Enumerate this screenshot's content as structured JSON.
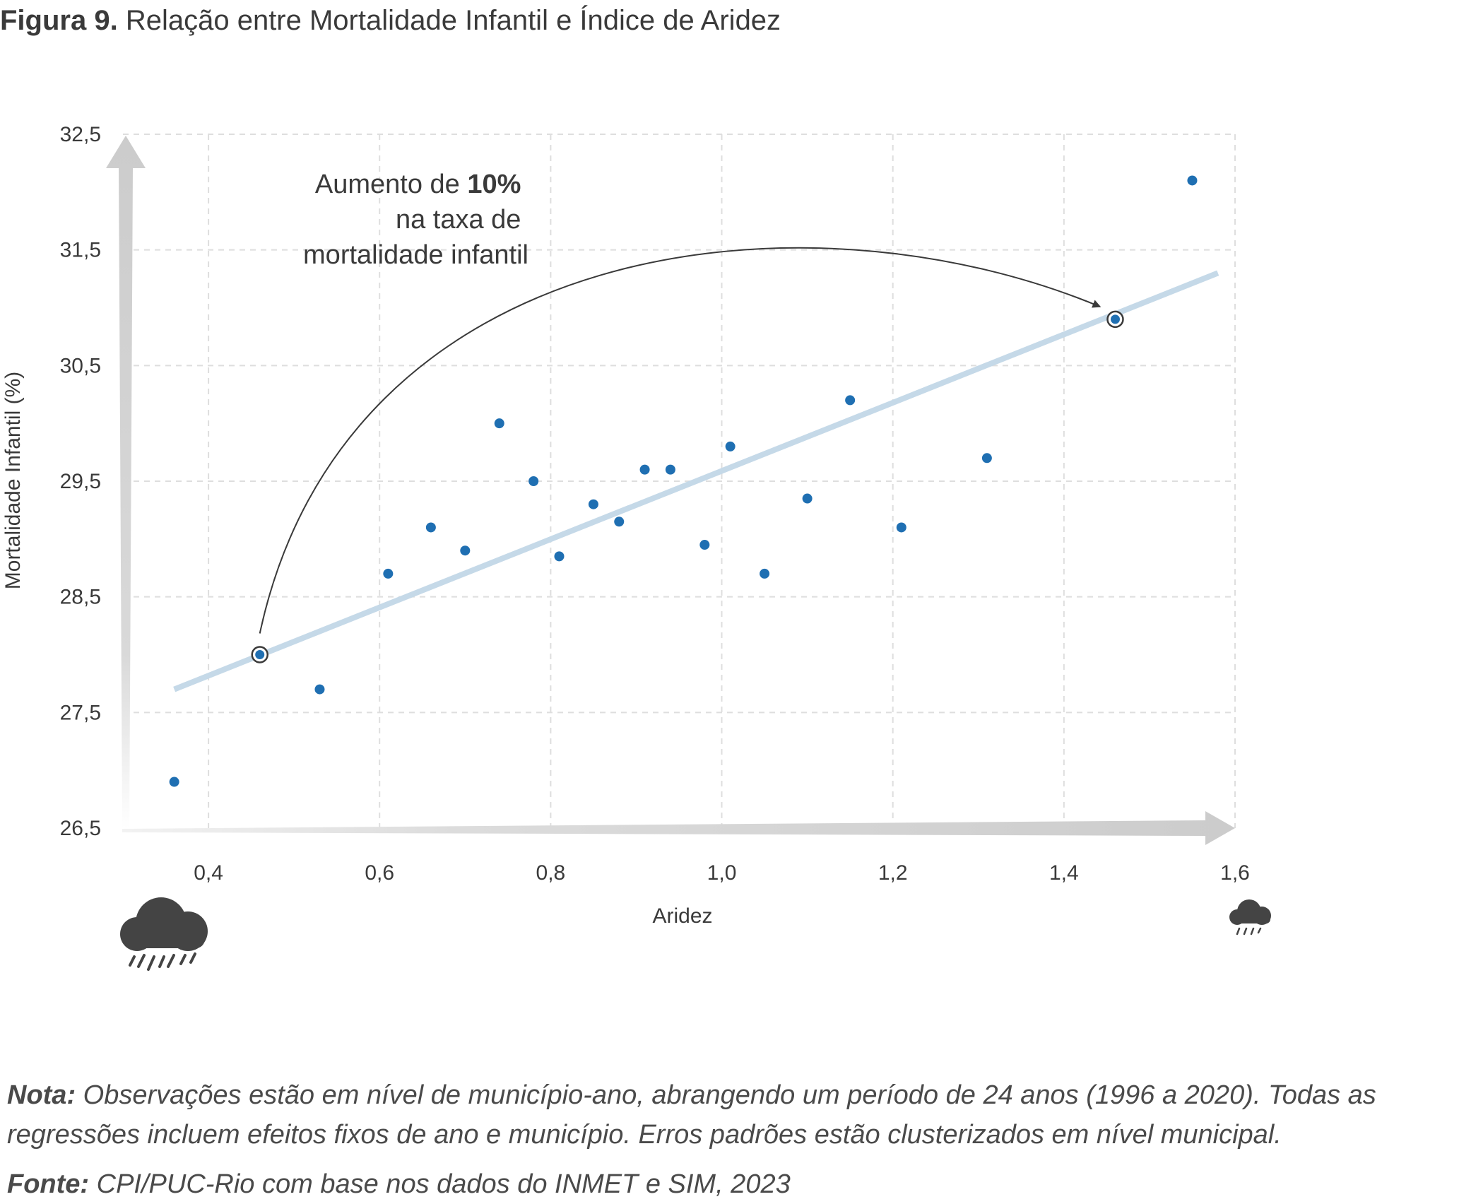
{
  "figure": {
    "label": "Figura 9.",
    "title": "Relação entre Mortalidade Infantil e Índice de Aridez"
  },
  "annotation": {
    "line1_prefix": "Aumento de ",
    "line1_bold": "10%",
    "line2": "na taxa de",
    "line3": "mortalidade infantil"
  },
  "note": {
    "label": "Nota:",
    "text": " Observações estão em nível de município-ano, abrangendo um período de 24 anos (1996 a 2020). Todas as regressões incluem efeitos fixos de ano e município. Erros padrões estão clusterizados  em nível municipal."
  },
  "source": {
    "label": "Fonte:",
    "text": " CPI/PUC-Rio com base nos dados do INMET e SIM, 2023"
  },
  "icons": {
    "left": "rain-cloud-icon-large",
    "right": "rain-cloud-icon-small"
  },
  "colors": {
    "point": "#1f6fb2",
    "trend": "#c5d9e8",
    "axis_arrow": "#cccccc",
    "grid": "#dedede",
    "cloud": "#444444",
    "text": "#3a3a3a"
  },
  "chart_data": {
    "type": "scatter",
    "xlabel": "Aridez",
    "ylabel": "Mortalidade Infantil (%)",
    "xlim": [
      0.3,
      1.6
    ],
    "ylim": [
      26.5,
      32.5
    ],
    "xticks": [
      "0,4",
      "0,6",
      "0,8",
      "1,0",
      "1,2",
      "1,4",
      "1,6"
    ],
    "xtick_values": [
      0.4,
      0.6,
      0.8,
      1.0,
      1.2,
      1.4,
      1.6
    ],
    "yticks": [
      "26,5",
      "27,5",
      "28,5",
      "29,5",
      "30,5",
      "31,5",
      "32,5"
    ],
    "ytick_values": [
      26.5,
      27.5,
      28.5,
      29.5,
      30.5,
      31.5,
      32.5
    ],
    "grid": true,
    "points": [
      {
        "x": 0.36,
        "y": 26.9
      },
      {
        "x": 0.46,
        "y": 28.0,
        "highlight": true
      },
      {
        "x": 0.53,
        "y": 27.7
      },
      {
        "x": 0.61,
        "y": 28.7
      },
      {
        "x": 0.66,
        "y": 29.1
      },
      {
        "x": 0.7,
        "y": 28.9
      },
      {
        "x": 0.74,
        "y": 30.0
      },
      {
        "x": 0.78,
        "y": 29.5
      },
      {
        "x": 0.81,
        "y": 28.85
      },
      {
        "x": 0.85,
        "y": 29.3
      },
      {
        "x": 0.88,
        "y": 29.15
      },
      {
        "x": 0.91,
        "y": 29.6
      },
      {
        "x": 0.94,
        "y": 29.6
      },
      {
        "x": 0.98,
        "y": 28.95
      },
      {
        "x": 1.01,
        "y": 29.8
      },
      {
        "x": 1.05,
        "y": 28.7
      },
      {
        "x": 1.1,
        "y": 29.35
      },
      {
        "x": 1.15,
        "y": 30.2
      },
      {
        "x": 1.21,
        "y": 29.1
      },
      {
        "x": 1.31,
        "y": 29.7
      },
      {
        "x": 1.46,
        "y": 30.9,
        "highlight": true
      },
      {
        "x": 1.55,
        "y": 32.1
      }
    ],
    "trendline": {
      "x": [
        0.36,
        1.58
      ],
      "y": [
        27.7,
        31.3
      ]
    }
  }
}
